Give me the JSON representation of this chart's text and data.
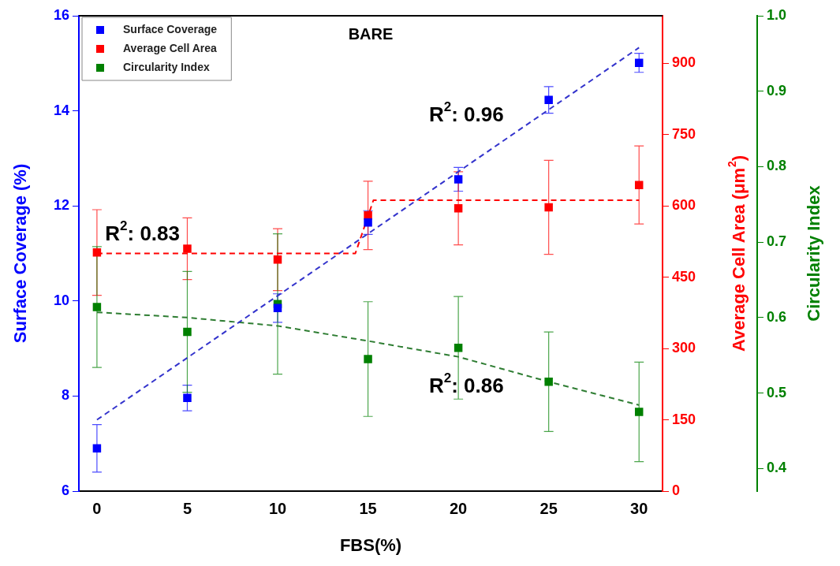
{
  "chart_data": {
    "type": "scatter",
    "xlabel": "FBS(%)",
    "ylabel": "Surface Coverage (%)",
    "y2label": "Average Cell Area (μm$^{2}$)",
    "y3label": "Circularity Index",
    "annotations": [
      "BARE",
      "R$^{2}$: 0.83",
      "R$^{2}$: 0.96",
      "R$^{2}$: 0.86"
    ],
    "x": [
      0,
      5,
      10,
      15,
      20,
      25,
      30
    ],
    "series": [
      {
        "name": "Surface Coverage",
        "color": "#0000ff",
        "marker": "square",
        "values": [
          6.9,
          7.96,
          9.85,
          11.65,
          12.56,
          14.23,
          15.01
        ],
        "errors": [
          0.5,
          0.27,
          0.3,
          0.25,
          0.25,
          0.28,
          0.2
        ]
      },
      {
        "name": "Average Cell Area",
        "color": "#ff0000",
        "marker": "square",
        "axis": "y2",
        "values": [
          502,
          510,
          487,
          580,
          595,
          597,
          644
        ],
        "errors": [
          90,
          65,
          65,
          72,
          77,
          99,
          82
        ]
      },
      {
        "name": "Circularity Index",
        "color": "#008000",
        "marker": "square",
        "axis": "y3",
        "values": [
          0.614,
          0.581,
          0.618,
          0.545,
          0.56,
          0.515,
          0.475
        ],
        "errors": [
          0.08,
          0.08,
          0.093,
          0.076,
          0.068,
          0.066,
          0.066
        ]
      },
      {
        "type": "line",
        "color": "#3333cc",
        "marker": "none",
        "line_style": "dashed",
        "x": [
          0,
          30
        ],
        "values": [
          7.5,
          15.33
        ]
      },
      {
        "type": "line",
        "color": "#ff0000",
        "marker": "none",
        "line_style": "dashed",
        "axis": "y2",
        "x": [
          0,
          14.3,
          15.3,
          30
        ],
        "values": [
          500,
          500,
          612,
          612
        ]
      },
      {
        "type": "line",
        "color": "#2e7d32",
        "marker": "none",
        "line_style": "dashed",
        "axis": "y3",
        "x": [
          0,
          5,
          10,
          15,
          20,
          25,
          30
        ],
        "values": [
          0.607,
          0.6,
          0.589,
          0.569,
          0.548,
          0.515,
          0.484
        ]
      }
    ],
    "xlim": [
      -1,
      31.3
    ],
    "xticks": [
      0,
      5,
      10,
      15,
      20,
      25,
      30
    ],
    "ylim": [
      6,
      16
    ],
    "yticks": [
      6,
      8,
      10,
      12,
      14,
      16
    ],
    "y2lim": [
      0,
      1000
    ],
    "y2ticks": [
      0,
      150,
      300,
      450,
      600,
      750,
      900
    ],
    "y3lim": [
      0.37,
      1.0
    ],
    "y3ticks": [
      0.4,
      0.5,
      0.6,
      0.7,
      0.8,
      0.9,
      {
        "value": 1,
        "label": "1.0"
      }
    ],
    "grid": false,
    "legend": "top left"
  }
}
